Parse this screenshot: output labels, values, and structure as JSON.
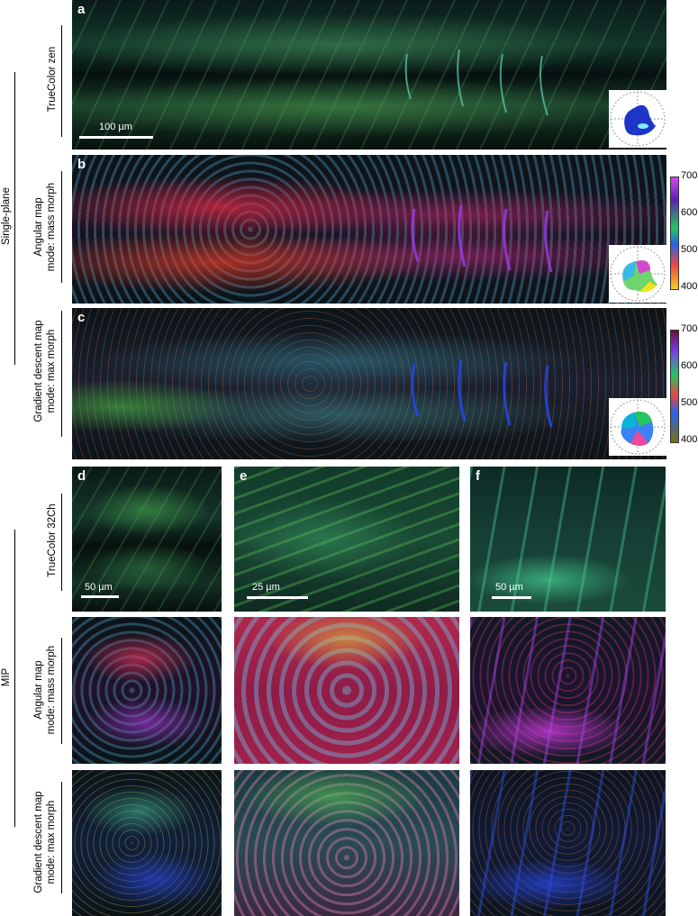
{
  "panels": {
    "a": {
      "letter": "a"
    },
    "b": {
      "letter": "b"
    },
    "c": {
      "letter": "c"
    },
    "d": {
      "letter": "d"
    },
    "e": {
      "letter": "e"
    },
    "f": {
      "letter": "f"
    }
  },
  "row_labels": {
    "truecolor_zen": "TrueColor zen",
    "angular_1": "Angular map",
    "angular_2": "mode: mass morph",
    "gradient_1": "Gradient descent map",
    "gradient_2": "mode: max morph",
    "truecolor_32ch": "TrueColor 32Ch"
  },
  "group_labels": {
    "single_plane": "Single-plane",
    "mip": "MIP"
  },
  "scalebars": {
    "a": "100 µm",
    "d": "50 µm",
    "e": "25 µm",
    "f": "50 µm"
  },
  "colorbar_ticks": [
    "700",
    "600",
    "500",
    "400"
  ],
  "colors": {
    "truecolor_green": "#1e6b3c",
    "angular_red": "#c0254a",
    "angular_cyan": "#4aa9c7",
    "gradient_blue": "#2a3fc7",
    "gradient_green": "#3fae45"
  }
}
